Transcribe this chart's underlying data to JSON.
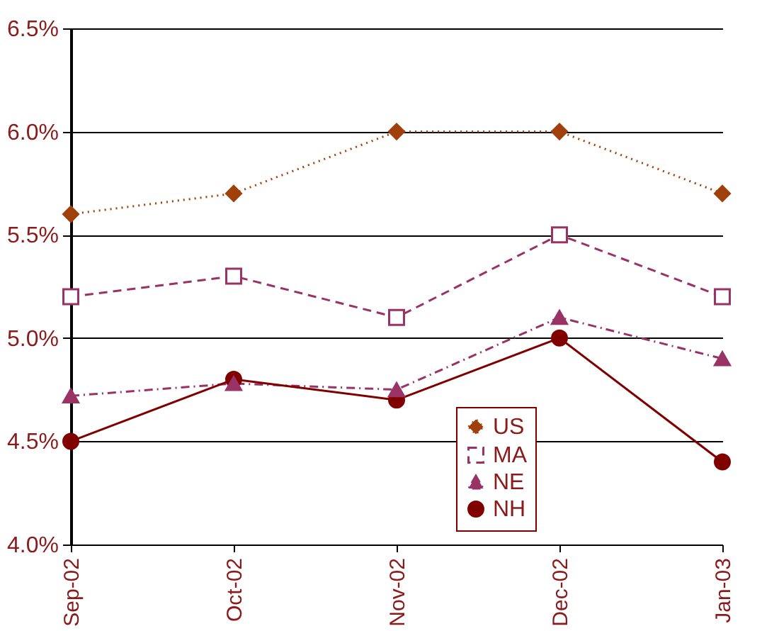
{
  "chart_data": {
    "type": "line",
    "categories": [
      "Sep-02",
      "Oct-02",
      "Nov-02",
      "Dec-02",
      "Jan-03"
    ],
    "ylim": [
      4.0,
      6.5
    ],
    "yticks": [
      {
        "value": 4.0,
        "label": "4.0%"
      },
      {
        "value": 4.5,
        "label": "4.5%"
      },
      {
        "value": 5.0,
        "label": "5.0%"
      },
      {
        "value": 5.5,
        "label": "5.5%"
      },
      {
        "value": 6.0,
        "label": "6.0%"
      },
      {
        "value": 6.5,
        "label": "6.5%"
      }
    ],
    "grid": "y",
    "legend": "bottom right",
    "series": [
      {
        "name": "US",
        "color": "#a0400a",
        "marker": "diamond",
        "line_style": "dotted",
        "values": [
          5.6,
          5.7,
          6.0,
          6.0,
          5.7
        ]
      },
      {
        "name": "MA",
        "color": "#993366",
        "marker": "square",
        "line_style": "dashed",
        "values": [
          5.2,
          5.3,
          5.1,
          5.5,
          5.2
        ]
      },
      {
        "name": "NE",
        "color": "#993366",
        "marker": "triangle",
        "line_style": "dashdot",
        "values": [
          4.72,
          4.78,
          4.75,
          5.1,
          4.9
        ]
      },
      {
        "name": "NH",
        "color": "#800000",
        "marker": "circle",
        "line_style": "solid",
        "values": [
          4.5,
          4.8,
          4.7,
          5.0,
          4.4
        ]
      }
    ]
  }
}
